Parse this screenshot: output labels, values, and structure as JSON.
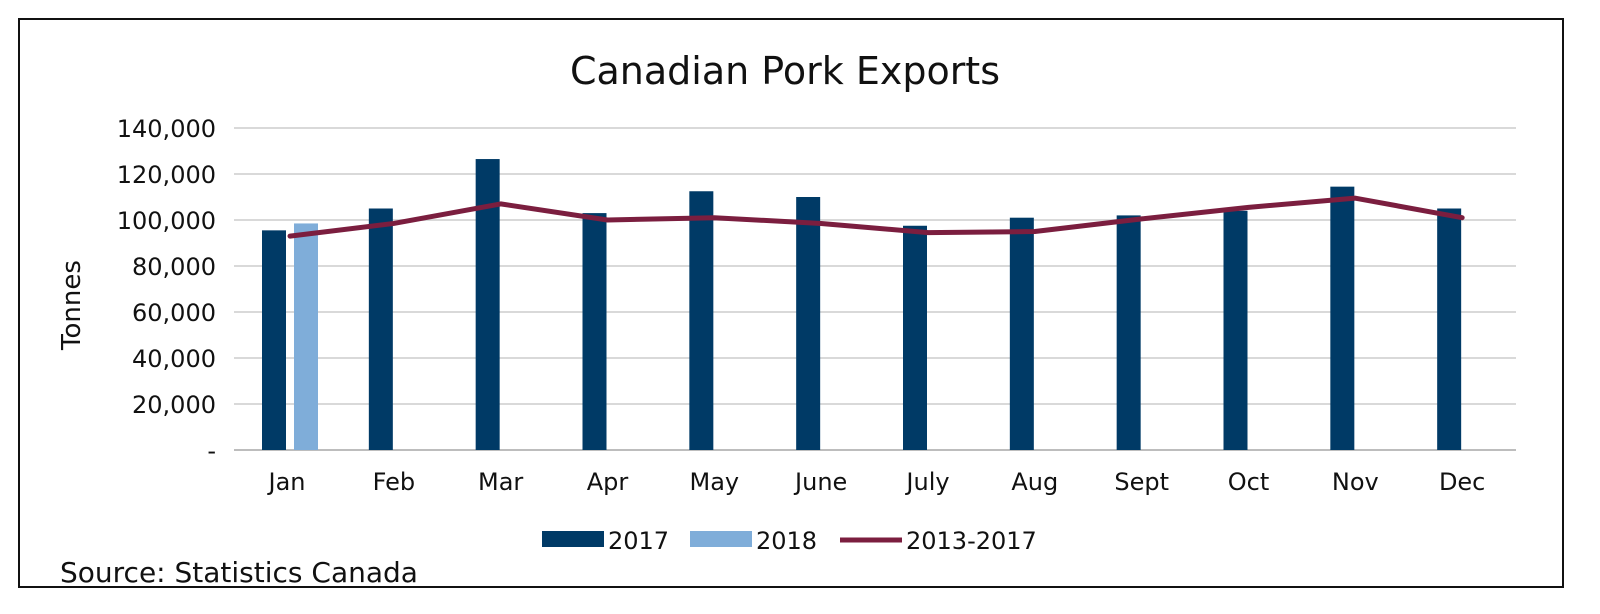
{
  "chart_data": {
    "type": "bar",
    "title": "Canadian Pork Exports",
    "ylabel": "Tonnes",
    "xlabel": "",
    "ylim": [
      0,
      140000
    ],
    "yticks": [
      0,
      20000,
      40000,
      60000,
      80000,
      100000,
      120000,
      140000
    ],
    "ytick_labels": [
      "-",
      "20,000",
      "40,000",
      "60,000",
      "80,000",
      "100,000",
      "120,000",
      "140,000"
    ],
    "categories": [
      "Jan",
      "Feb",
      "Mar",
      "Apr",
      "May",
      "June",
      "July",
      "Aug",
      "Sept",
      "Oct",
      "Nov",
      "Dec"
    ],
    "grid": true,
    "legend_position": "bottom",
    "series": [
      {
        "name": "2017",
        "type": "bar",
        "color": "#003A66",
        "values": [
          95500,
          105000,
          126500,
          103000,
          112500,
          110000,
          97500,
          101000,
          102000,
          104000,
          114500,
          105000
        ]
      },
      {
        "name": "2018",
        "type": "bar",
        "color": "#7FADD9",
        "values": [
          98500,
          null,
          null,
          null,
          null,
          null,
          null,
          null,
          null,
          null,
          null,
          null
        ]
      },
      {
        "name": "2013-2017",
        "type": "line",
        "color": "#7B1E3F",
        "values": [
          93000,
          98500,
          107000,
          100000,
          101000,
          98500,
          94500,
          95000,
          100500,
          105500,
          109500,
          101000
        ]
      }
    ]
  },
  "source": "Source: Statistics Canada"
}
